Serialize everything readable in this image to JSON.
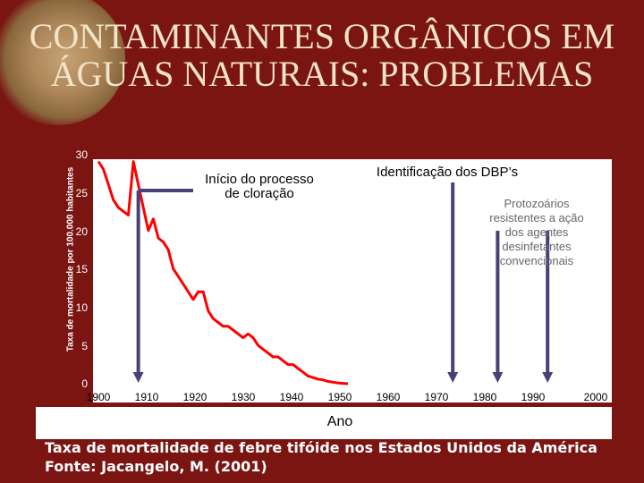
{
  "slide": {
    "title_line1": "CONTAMINANTES ORGÂNICOS EM",
    "title_line2": "ÁGUAS NATURAIS: PROBLEMAS",
    "caption_line1": "Taxa de mortalidade de febre tifóide nos Estados Unidos da América",
    "caption_line2": "Fonte: Jacangelo, M. (2001)"
  },
  "chart_data": {
    "type": "line",
    "title": "",
    "xlabel": "Ano",
    "ylabel": "Taxa de mortalidade por 100.000 habitantes",
    "xlim": [
      1900,
      2000
    ],
    "ylim": [
      0,
      30
    ],
    "x_ticks": [
      "1900",
      "1910",
      "1920",
      "1930",
      "1940",
      "1950",
      "1960",
      "1970",
      "1980",
      "1990",
      "2000"
    ],
    "y_ticks": [
      "0",
      "5",
      "10",
      "15",
      "20",
      "25",
      "30"
    ],
    "series": [
      {
        "x": [
          1900,
          1901,
          1902,
          1903,
          1904,
          1905,
          1906,
          1907,
          1908,
          1909,
          1910,
          1911,
          1912,
          1913,
          1914,
          1915,
          1916,
          1917,
          1918,
          1919,
          1920,
          1921,
          1922,
          1923,
          1924,
          1925,
          1926,
          1927,
          1928,
          1929,
          1930,
          1931,
          1932,
          1933,
          1934,
          1935,
          1936,
          1937,
          1938,
          1939,
          1940,
          1941,
          1942,
          1943,
          1944,
          1945,
          1946,
          1947,
          1948,
          1949,
          1950
        ],
        "y": [
          29.0,
          28.0,
          26.0,
          24.0,
          23.0,
          22.5,
          22.0,
          29.0,
          26.0,
          23.0,
          20.0,
          21.5,
          19.0,
          18.5,
          17.5,
          15.0,
          14.0,
          13.0,
          12.0,
          11.0,
          12.0,
          12.0,
          9.5,
          8.5,
          8.0,
          7.5,
          7.5,
          7.0,
          6.5,
          6.0,
          6.5,
          6.0,
          5.0,
          4.5,
          4.0,
          3.5,
          3.5,
          3.0,
          2.5,
          2.5,
          2.0,
          1.5,
          1.0,
          0.8,
          0.6,
          0.5,
          0.3,
          0.2,
          0.1,
          0.05,
          0.0
        ]
      }
    ],
    "annotations": [
      {
        "text": "Início do processo\nde cloração"
      },
      {
        "text": "Identificação dos DBP’s"
      },
      {
        "text": "Protozoários\nresistentes a ação\ndos agentes\ndesinfetantes\nconvencionais"
      }
    ],
    "marker_years": [
      1908,
      1971,
      1980,
      1990
    ],
    "grid": false,
    "colors": {
      "line": "#ff0000",
      "marker": "#4b3f7a",
      "background": "#7a1512",
      "title": "#f3e4c7"
    }
  }
}
